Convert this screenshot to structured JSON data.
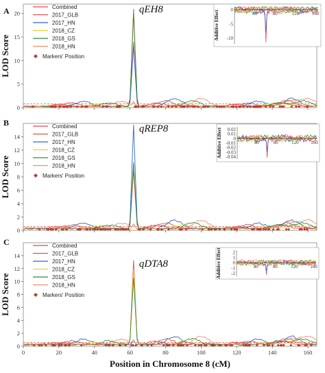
{
  "figure": {
    "xlabel": "Position in Chromosome 8 (cM)",
    "colors": {
      "Combined": "#e8414b",
      "2017_GLB": "#d9534f",
      "2017_HN": "#2f66c8",
      "2018_CZ": "#e8d22a",
      "2018_GS": "#2f8a3a",
      "2018_HN": "#f08a6a",
      "marker": "#c0392b",
      "threshold": "#c0392b"
    }
  },
  "chart_data": [
    {
      "type": "line",
      "panel_letter": "A",
      "qtl_label": "qEH8",
      "ylabel": "LOD Score",
      "xlim": [
        0,
        165
      ],
      "ylim": [
        0,
        22
      ],
      "xticks": [
        0,
        20,
        40,
        60,
        80,
        100,
        120,
        140,
        160
      ],
      "yticks": [
        0,
        5,
        10,
        15,
        20
      ],
      "legend": {
        "position": "top-left",
        "entries": [
          "Combined",
          "2017_GLB",
          "2017_HN",
          "2018_CZ",
          "2018_GS",
          "2018_HN"
        ],
        "marker_label": "Markers' Position"
      },
      "peak": {
        "x": 62,
        "values": {
          "Combined": 21.0,
          "2018_GS": 20.0,
          "2017_GLB": 14.0,
          "2017_HN": 13.0
        }
      },
      "inset": {
        "ylabel": "Additive Effect",
        "yticks": [
          0,
          -5,
          -10
        ],
        "xticks": [
          40,
          80,
          120,
          160
        ],
        "ylim": [
          -12,
          1
        ],
        "dip": {
          "x": 62,
          "value": -11.5
        }
      }
    },
    {
      "type": "line",
      "panel_letter": "B",
      "qtl_label": "qREP8",
      "ylabel": "LOD Score",
      "xlim": [
        0,
        165
      ],
      "ylim": [
        0,
        16
      ],
      "xticks": [
        0,
        20,
        40,
        60,
        80,
        100,
        120,
        140,
        160
      ],
      "yticks": [
        0,
        2,
        4,
        6,
        8,
        10,
        12,
        14
      ],
      "legend": {
        "position": "top-left",
        "entries": [
          "Combined",
          "2017_GLB",
          "2017_HN",
          "2018_CZ",
          "2018_GS",
          "2018_HN"
        ],
        "marker_label": "Markers' Position"
      },
      "peak": {
        "x": 62,
        "values": {
          "2017_HN": 15.8,
          "2018_GS": 10.2,
          "Combined": 9.0
        }
      },
      "inset": {
        "ylabel": "Additive Effect",
        "yticks": [
          0.02,
          0.01,
          0.0,
          -0.01,
          -0.02,
          -0.03,
          -0.04
        ],
        "xticks": [
          40,
          80,
          120,
          160
        ],
        "ylim": [
          -0.045,
          0.025
        ],
        "dip": {
          "x": 62,
          "value": -0.042
        }
      }
    },
    {
      "type": "line",
      "panel_letter": "C",
      "qtl_label": "qDTA8",
      "ylabel": "LOD Score",
      "xlim": [
        0,
        165
      ],
      "ylim": [
        0,
        16
      ],
      "xticks": [
        0,
        20,
        40,
        60,
        80,
        100,
        120,
        140,
        160
      ],
      "yticks": [
        0,
        2,
        4,
        6,
        8,
        10,
        12,
        14
      ],
      "legend": {
        "position": "top-left",
        "entries": [
          "Combined",
          "2017_GLB",
          "2017_HN",
          "2018_CZ",
          "2018_GS",
          "2018_HN"
        ],
        "marker_label": "Markers' Position"
      },
      "peak": {
        "x": 62,
        "values": {
          "Combined": 13.3,
          "2018_CZ": 12.0,
          "2018_GS": 10.6
        }
      },
      "inset": {
        "ylabel": "Additive Effect",
        "yticks": [
          2,
          1,
          0,
          -1,
          -2
        ],
        "xticks": [
          40,
          80,
          120,
          160
        ],
        "ylim": [
          -2.6,
          2.4
        ],
        "dip": {
          "x": 62,
          "value": -2.3
        }
      }
    }
  ]
}
